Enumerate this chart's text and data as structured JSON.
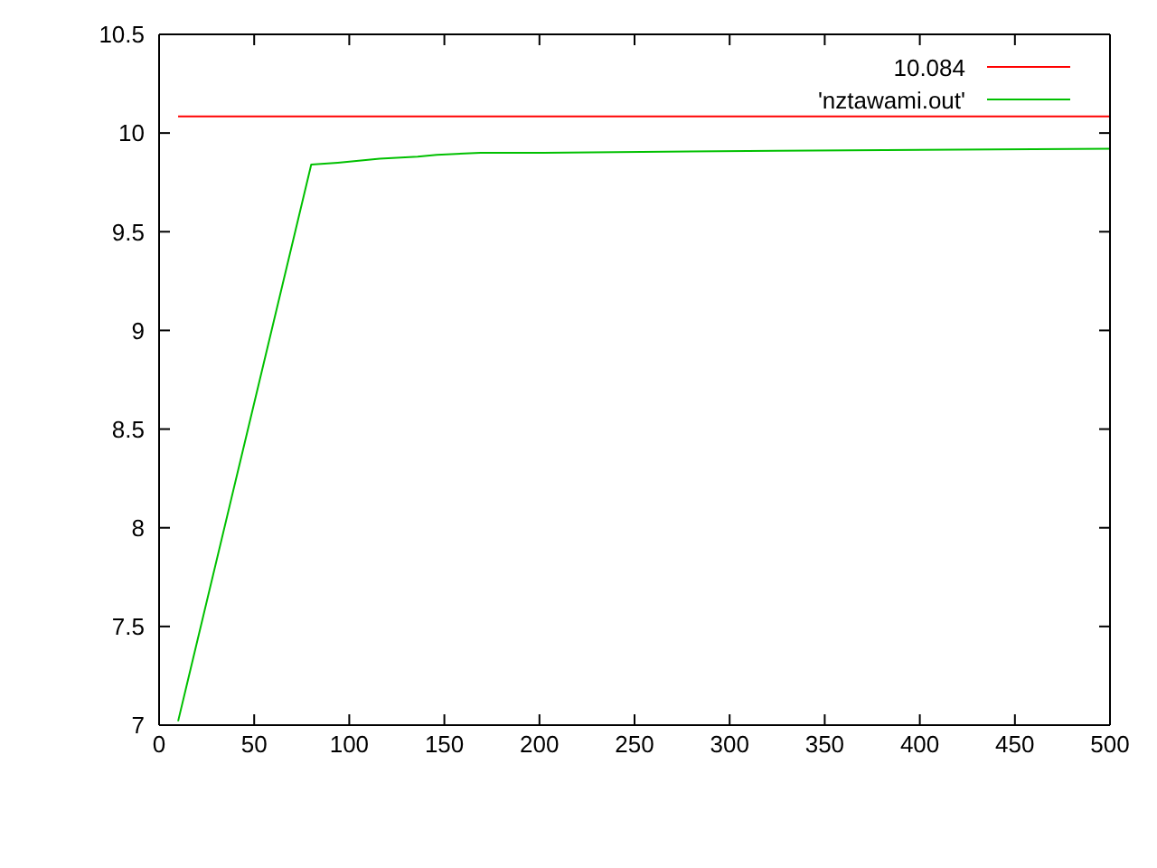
{
  "chart_data": {
    "type": "line",
    "series": [
      {
        "name": "10.084",
        "color": "#ff0000",
        "x": [
          10,
          500
        ],
        "values": [
          10.084,
          10.084
        ]
      },
      {
        "name": "'nztawami.out'",
        "color": "#00c000",
        "x": [
          10,
          80,
          94,
          116,
          136,
          146,
          169,
          202,
          325,
          500
        ],
        "values": [
          7.02,
          9.84,
          9.85,
          9.87,
          9.88,
          9.89,
          9.9,
          9.9,
          9.91,
          9.92
        ]
      }
    ],
    "xlim": [
      0,
      500
    ],
    "xticks": [
      0,
      50,
      100,
      150,
      200,
      250,
      300,
      350,
      400,
      450,
      500
    ],
    "ylim": [
      7,
      10.5
    ],
    "yticks": [
      7,
      7.5,
      8,
      8.5,
      9,
      9.5,
      10,
      10.5
    ],
    "legend": "top right",
    "marker": "none",
    "line_style": "solid"
  }
}
